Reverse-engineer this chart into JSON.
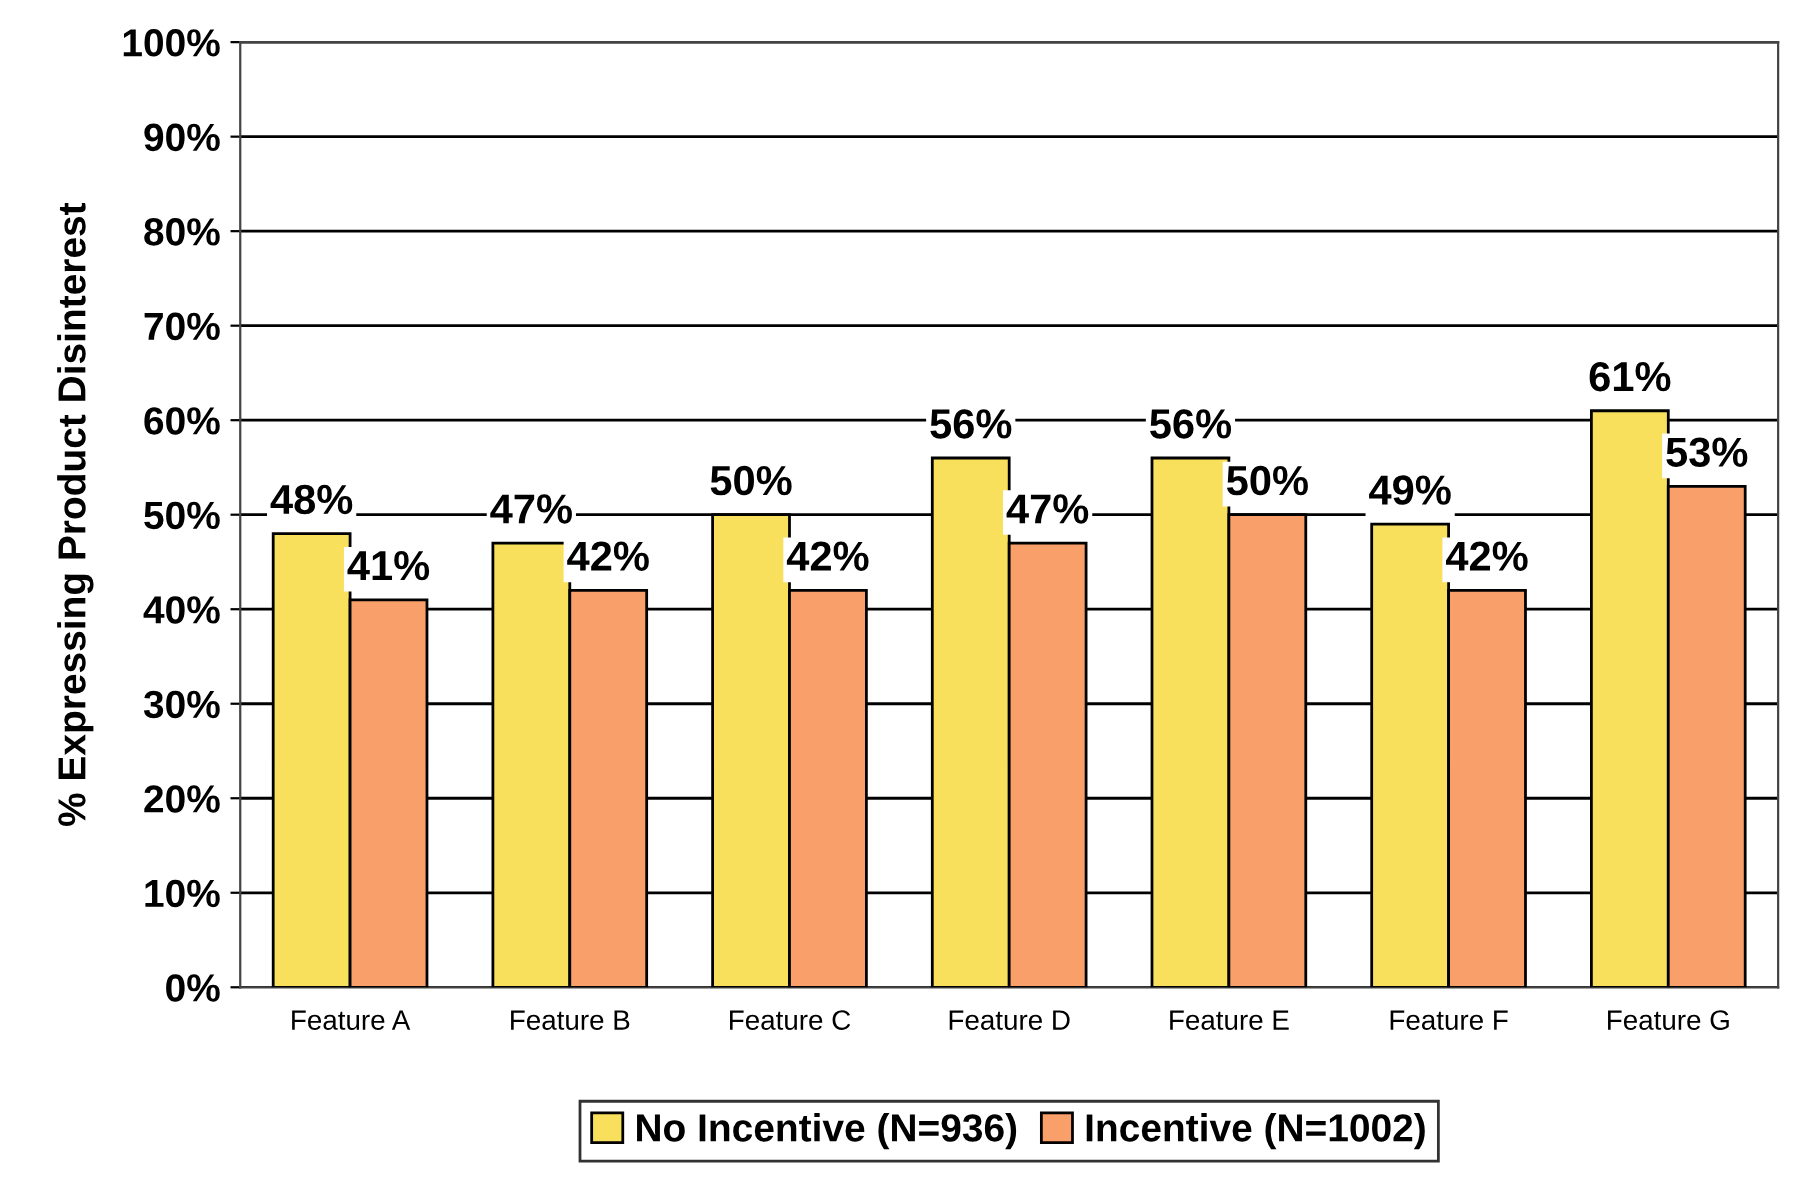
{
  "chart_data": {
    "type": "bar",
    "ylabel": "% Expressing Product Disinterest",
    "categories": [
      "Feature A",
      "Feature B",
      "Feature C",
      "Feature D",
      "Feature E",
      "Feature F",
      "Feature G"
    ],
    "series": [
      {
        "name": "No Incentive (N=936)",
        "color": "#f8df5c",
        "values": [
          48,
          47,
          50,
          56,
          56,
          49,
          61
        ],
        "value_labels": [
          "48%",
          "47%",
          "50%",
          "56%",
          "56%",
          "49%",
          "61%"
        ]
      },
      {
        "name": "Incentive (N=1002)",
        "color": "#f89f6a",
        "values": [
          41,
          42,
          42,
          47,
          50,
          42,
          53
        ],
        "value_labels": [
          "41%",
          "42%",
          "42%",
          "47%",
          "50%",
          "42%",
          "53%"
        ]
      }
    ],
    "ylim": [
      0,
      100
    ],
    "yticks": [
      {
        "value": 0,
        "label": "0%"
      },
      {
        "value": 10,
        "label": "10%"
      },
      {
        "value": 20,
        "label": "20%"
      },
      {
        "value": 30,
        "label": "30%"
      },
      {
        "value": 40,
        "label": "40%"
      },
      {
        "value": 50,
        "label": "50%"
      },
      {
        "value": 60,
        "label": "60%"
      },
      {
        "value": 70,
        "label": "70%"
      },
      {
        "value": 80,
        "label": "80%"
      },
      {
        "value": 90,
        "label": "90%"
      },
      {
        "value": 100,
        "label": "100%"
      }
    ],
    "grid": "y",
    "legend": "bottom"
  }
}
